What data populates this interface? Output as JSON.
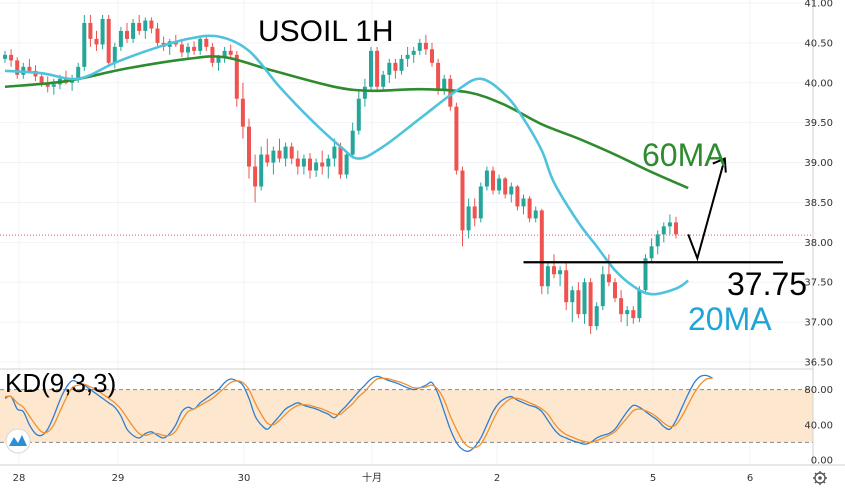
{
  "chart_data": [
    {
      "type": "candlestick",
      "title": "USOIL 1H",
      "ylim": [
        36.5,
        41.0
      ],
      "y_ticks": [
        "41.00",
        "40.50",
        "40.00",
        "39.50",
        "39.00",
        "38.50",
        "38.00",
        "37.50",
        "37.00",
        "36.50"
      ],
      "x_ticks": [
        "28",
        "29",
        "30",
        "十月",
        "2",
        "5",
        "6"
      ],
      "current_price_line": 38.09,
      "colors": {
        "up": "#26a69a",
        "down": "#ef5350",
        "ma20": "#4fc3dc",
        "ma60": "#2e8b2e",
        "support": "#000000",
        "accent_red": "#e06060"
      },
      "candles": [
        [
          40.3,
          40.4,
          40.25,
          40.35
        ],
        [
          40.35,
          40.42,
          40.2,
          40.28
        ],
        [
          40.28,
          40.32,
          40.05,
          40.1
        ],
        [
          40.1,
          40.25,
          40.05,
          40.2
        ],
        [
          40.2,
          40.3,
          40.12,
          40.15
        ],
        [
          40.15,
          40.22,
          40.02,
          40.08
        ],
        [
          40.08,
          40.12,
          39.95,
          40.0
        ],
        [
          40.0,
          40.08,
          39.88,
          39.95
        ],
        [
          39.95,
          40.05,
          39.85,
          39.98
        ],
        [
          39.98,
          40.1,
          39.92,
          40.05
        ],
        [
          40.05,
          40.15,
          39.98,
          40.0
        ],
        [
          40.0,
          40.1,
          39.9,
          40.05
        ],
        [
          40.05,
          40.25,
          40.0,
          40.2
        ],
        [
          40.2,
          40.85,
          40.15,
          40.75
        ],
        [
          40.75,
          40.85,
          40.45,
          40.55
        ],
        [
          40.55,
          40.65,
          40.4,
          40.48
        ],
        [
          40.48,
          40.85,
          40.42,
          40.8
        ],
        [
          40.8,
          40.85,
          40.2,
          40.25
        ],
        [
          40.25,
          40.5,
          40.18,
          40.45
        ],
        [
          40.45,
          40.7,
          40.4,
          40.65
        ],
        [
          40.65,
          40.75,
          40.5,
          40.55
        ],
        [
          40.55,
          40.8,
          40.5,
          40.75
        ],
        [
          40.75,
          40.85,
          40.6,
          40.65
        ],
        [
          40.65,
          40.82,
          40.55,
          40.78
        ],
        [
          40.78,
          40.82,
          40.62,
          40.68
        ],
        [
          40.68,
          40.75,
          40.45,
          40.5
        ],
        [
          40.5,
          40.58,
          40.4,
          40.45
        ],
        [
          40.45,
          40.55,
          40.35,
          40.52
        ],
        [
          40.52,
          40.6,
          40.45,
          40.48
        ],
        [
          40.48,
          40.55,
          40.32,
          40.38
        ],
        [
          40.38,
          40.5,
          40.3,
          40.45
        ],
        [
          40.45,
          40.52,
          40.35,
          40.4
        ],
        [
          40.4,
          40.58,
          40.35,
          40.55
        ],
        [
          40.55,
          40.6,
          40.4,
          40.45
        ],
        [
          40.45,
          40.5,
          40.2,
          40.25
        ],
        [
          40.25,
          40.35,
          40.15,
          40.32
        ],
        [
          40.32,
          40.45,
          40.25,
          40.4
        ],
        [
          40.4,
          40.48,
          40.3,
          40.35
        ],
        [
          40.35,
          40.4,
          39.7,
          39.8
        ],
        [
          39.8,
          40.0,
          39.3,
          39.45
        ],
        [
          39.45,
          39.55,
          38.8,
          38.95
        ],
        [
          38.95,
          39.1,
          38.5,
          38.7
        ],
        [
          38.7,
          39.2,
          38.65,
          39.1
        ],
        [
          39.1,
          39.3,
          38.95,
          39.0
        ],
        [
          39.0,
          39.2,
          38.85,
          39.15
        ],
        [
          39.15,
          39.3,
          39.0,
          39.05
        ],
        [
          39.05,
          39.25,
          38.95,
          39.2
        ],
        [
          39.2,
          39.25,
          38.98,
          39.05
        ],
        [
          39.05,
          39.15,
          38.85,
          38.95
        ],
        [
          38.95,
          39.1,
          38.85,
          39.05
        ],
        [
          39.05,
          39.12,
          38.8,
          38.9
        ],
        [
          38.9,
          39.05,
          38.82,
          39.0
        ],
        [
          39.0,
          39.15,
          38.85,
          38.95
        ],
        [
          38.95,
          39.1,
          38.8,
          39.05
        ],
        [
          39.05,
          39.3,
          38.95,
          39.2
        ],
        [
          39.2,
          39.25,
          38.8,
          38.85
        ],
        [
          38.85,
          39.15,
          38.8,
          39.1
        ],
        [
          39.1,
          39.5,
          39.05,
          39.4
        ],
        [
          39.4,
          39.9,
          39.35,
          39.8
        ],
        [
          39.8,
          40.05,
          39.7,
          39.95
        ],
        [
          39.95,
          40.45,
          39.9,
          40.4
        ],
        [
          40.4,
          40.45,
          39.9,
          39.95
        ],
        [
          39.95,
          40.15,
          39.9,
          40.1
        ],
        [
          40.1,
          40.3,
          40.0,
          40.25
        ],
        [
          40.25,
          40.3,
          40.05,
          40.15
        ],
        [
          40.15,
          40.35,
          40.1,
          40.3
        ],
        [
          40.3,
          40.45,
          40.2,
          40.35
        ],
        [
          40.35,
          40.45,
          40.25,
          40.4
        ],
        [
          40.4,
          40.55,
          40.35,
          40.5
        ],
        [
          40.5,
          40.6,
          40.35,
          40.42
        ],
        [
          40.42,
          40.5,
          40.2,
          40.25
        ],
        [
          40.25,
          40.3,
          39.85,
          39.9
        ],
        [
          39.9,
          40.1,
          39.85,
          40.05
        ],
        [
          40.05,
          40.1,
          39.65,
          39.7
        ],
        [
          39.7,
          39.75,
          38.85,
          38.9
        ],
        [
          38.9,
          38.95,
          37.95,
          38.15
        ],
        [
          38.15,
          38.55,
          38.05,
          38.45
        ],
        [
          38.45,
          38.55,
          38.2,
          38.3
        ],
        [
          38.3,
          38.75,
          38.25,
          38.7
        ],
        [
          38.7,
          38.95,
          38.65,
          38.9
        ],
        [
          38.9,
          38.95,
          38.6,
          38.65
        ],
        [
          38.65,
          38.85,
          38.6,
          38.8
        ],
        [
          38.8,
          38.82,
          38.55,
          38.6
        ],
        [
          38.6,
          38.75,
          38.5,
          38.7
        ],
        [
          38.7,
          38.72,
          38.4,
          38.45
        ],
        [
          38.45,
          38.6,
          38.35,
          38.55
        ],
        [
          38.55,
          38.58,
          38.25,
          38.3
        ],
        [
          38.3,
          38.45,
          38.25,
          38.4
        ],
        [
          38.4,
          38.42,
          37.35,
          37.45
        ],
        [
          37.45,
          37.75,
          37.35,
          37.7
        ],
        [
          37.7,
          37.85,
          37.55,
          37.6
        ],
        [
          37.6,
          37.7,
          37.45,
          37.65
        ],
        [
          37.65,
          37.75,
          37.15,
          37.25
        ],
        [
          37.25,
          37.45,
          37.0,
          37.4
        ],
        [
          37.4,
          37.5,
          37.05,
          37.1
        ],
        [
          37.1,
          37.55,
          36.98,
          37.5
        ],
        [
          37.5,
          37.55,
          36.85,
          36.95
        ],
        [
          36.95,
          37.25,
          36.9,
          37.2
        ],
        [
          37.2,
          37.7,
          37.15,
          37.6
        ],
        [
          37.6,
          37.85,
          37.45,
          37.5
        ],
        [
          37.5,
          37.55,
          37.25,
          37.3
        ],
        [
          37.3,
          37.4,
          37.0,
          37.1
        ],
        [
          37.1,
          37.2,
          36.95,
          37.15
        ],
        [
          37.15,
          37.2,
          36.98,
          37.05
        ],
        [
          37.05,
          37.45,
          37.0,
          37.4
        ],
        [
          37.4,
          37.85,
          37.35,
          37.8
        ],
        [
          37.8,
          38.05,
          37.75,
          37.95
        ],
        [
          37.95,
          38.15,
          37.85,
          38.1
        ],
        [
          38.1,
          38.25,
          38.0,
          38.2
        ],
        [
          38.2,
          38.35,
          38.1,
          38.25
        ],
        [
          38.25,
          38.32,
          38.05,
          38.1
        ]
      ],
      "ma20": {
        "label": "20MA",
        "points": [
          [
            0,
            40.15
          ],
          [
            6,
            40.12
          ],
          [
            12,
            40.05
          ],
          [
            18,
            40.25
          ],
          [
            24,
            40.42
          ],
          [
            30,
            40.55
          ],
          [
            35,
            40.58
          ],
          [
            40,
            40.4
          ],
          [
            45,
            39.95
          ],
          [
            50,
            39.55
          ],
          [
            55,
            39.2
          ],
          [
            58,
            39.05
          ],
          [
            62,
            39.2
          ],
          [
            68,
            39.55
          ],
          [
            74,
            39.9
          ],
          [
            78,
            40.05
          ],
          [
            82,
            39.85
          ],
          [
            85,
            39.55
          ],
          [
            88,
            39.15
          ],
          [
            90,
            38.75
          ],
          [
            94,
            38.25
          ],
          [
            97,
            37.95
          ],
          [
            100,
            37.65
          ],
          [
            103,
            37.45
          ],
          [
            106,
            37.35
          ],
          [
            110,
            37.42
          ],
          [
            112,
            37.52
          ]
        ]
      },
      "ma60": {
        "label": "60MA",
        "points": [
          [
            0,
            39.95
          ],
          [
            10,
            40.02
          ],
          [
            20,
            40.18
          ],
          [
            30,
            40.3
          ],
          [
            36,
            40.32
          ],
          [
            44,
            40.15
          ],
          [
            54,
            39.95
          ],
          [
            60,
            39.9
          ],
          [
            68,
            39.92
          ],
          [
            76,
            39.88
          ],
          [
            82,
            39.72
          ],
          [
            88,
            39.48
          ],
          [
            94,
            39.3
          ],
          [
            100,
            39.1
          ],
          [
            106,
            38.88
          ],
          [
            112,
            38.68
          ]
        ]
      },
      "support": {
        "value": 37.75,
        "label": "37.75",
        "from_candle": 85
      },
      "projection": {
        "points": [
          [
            112,
            38.1
          ],
          [
            113.5,
            37.8
          ],
          [
            118,
            39.05
          ]
        ]
      }
    },
    {
      "type": "line",
      "title": "KD(9,3,3)",
      "ylim": [
        0,
        100
      ],
      "y_ticks": [
        "80.00",
        "40.00",
        "0.00"
      ],
      "band": [
        20,
        80
      ],
      "series": [
        {
          "color": "#2f7fd0",
          "values": [
            70,
            72,
            58,
            55,
            40,
            30,
            28,
            35,
            50,
            68,
            82,
            90,
            88,
            85,
            80,
            75,
            70,
            65,
            60,
            50,
            35,
            28,
            25,
            30,
            32,
            28,
            25,
            30,
            40,
            55,
            60,
            58,
            65,
            70,
            75,
            80,
            88,
            92,
            90,
            85,
            70,
            50,
            40,
            35,
            42,
            50,
            58,
            62,
            65,
            62,
            60,
            58,
            55,
            52,
            48,
            55,
            62,
            70,
            78,
            85,
            92,
            95,
            93,
            90,
            88,
            85,
            82,
            80,
            82,
            85,
            88,
            75,
            55,
            35,
            20,
            12,
            10,
            15,
            25,
            40,
            55,
            65,
            70,
            72,
            68,
            65,
            62,
            60,
            55,
            45,
            35,
            28,
            25,
            22,
            20,
            18,
            20,
            25,
            28,
            30,
            35,
            45,
            55,
            62,
            60,
            55,
            50,
            45,
            38,
            35,
            45,
            60,
            75,
            88,
            95,
            96,
            93
          ]
        },
        {
          "color": "#f09030",
          "values": [
            72,
            72,
            65,
            60,
            50,
            40,
            32,
            32,
            40,
            55,
            70,
            82,
            85,
            86,
            83,
            80,
            75,
            70,
            65,
            58,
            48,
            38,
            30,
            28,
            30,
            30,
            28,
            28,
            33,
            45,
            55,
            58,
            62,
            66,
            70,
            76,
            82,
            88,
            90,
            88,
            80,
            65,
            52,
            42,
            40,
            45,
            52,
            58,
            62,
            63,
            62,
            60,
            58,
            55,
            52,
            52,
            58,
            64,
            72,
            78,
            86,
            92,
            93,
            92,
            90,
            88,
            85,
            82,
            82,
            83,
            85,
            80,
            68,
            50,
            35,
            22,
            15,
            14,
            18,
            30,
            45,
            58,
            65,
            70,
            70,
            68,
            65,
            62,
            58,
            52,
            42,
            34,
            29,
            26,
            23,
            21,
            20,
            22,
            25,
            28,
            32,
            40,
            48,
            56,
            58,
            56,
            53,
            48,
            42,
            38,
            40,
            50,
            63,
            76,
            86,
            92,
            93
          ]
        }
      ]
    }
  ]
}
